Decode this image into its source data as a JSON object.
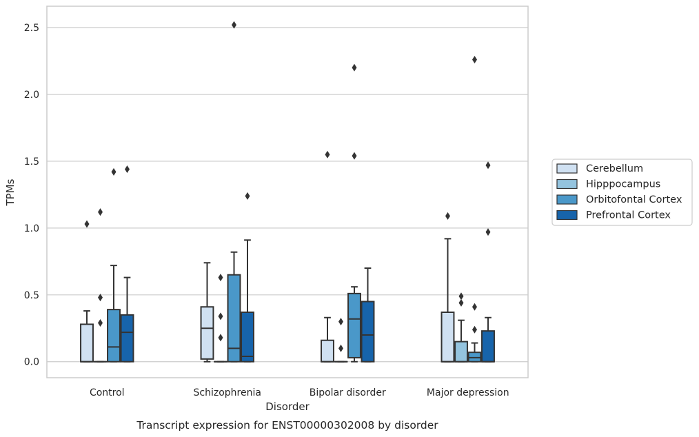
{
  "chart_data": {
    "type": "box",
    "caption": "Transcript expression for ENST00000302008 by disorder",
    "xlabel": "Disorder",
    "ylabel": "TPMs",
    "ylim": [
      -0.12,
      2.66
    ],
    "yticks": [
      0.0,
      0.5,
      1.0,
      1.5,
      2.0,
      2.5
    ],
    "ytick_labels": [
      "0.0",
      "0.5",
      "1.0",
      "1.5",
      "2.0",
      "2.5"
    ],
    "grid": "horizontal",
    "legend_position": "right",
    "categories": [
      "Control",
      "Schizophrenia",
      "Bipolar disorder",
      "Major depression"
    ],
    "series": [
      {
        "name": "Cerebellum",
        "color": "#d0e1f2",
        "boxes": [
          {
            "q1": 0.0,
            "median": 0.0,
            "q3": 0.28,
            "whisker_low": 0.0,
            "whisker_high": 0.38,
            "outliers": [
              1.03
            ]
          },
          {
            "q1": 0.02,
            "median": 0.25,
            "q3": 0.41,
            "whisker_low": 0.0,
            "whisker_high": 0.74,
            "outliers": []
          },
          {
            "q1": 0.0,
            "median": 0.0,
            "q3": 0.16,
            "whisker_low": 0.0,
            "whisker_high": 0.33,
            "outliers": [
              1.55
            ]
          },
          {
            "q1": 0.0,
            "median": 0.0,
            "q3": 0.37,
            "whisker_low": 0.0,
            "whisker_high": 0.92,
            "outliers": [
              1.09
            ]
          }
        ]
      },
      {
        "name": "Hipppocampus",
        "color": "#94c4df",
        "boxes": [
          {
            "q1": 0.0,
            "median": 0.0,
            "q3": 0.0,
            "whisker_low": 0.0,
            "whisker_high": 0.0,
            "outliers": [
              0.29,
              0.48,
              1.12
            ]
          },
          {
            "q1": 0.0,
            "median": 0.0,
            "q3": 0.0,
            "whisker_low": 0.0,
            "whisker_high": 0.0,
            "outliers": [
              0.18,
              0.34,
              0.63
            ]
          },
          {
            "q1": 0.0,
            "median": 0.0,
            "q3": 0.0,
            "whisker_low": 0.0,
            "whisker_high": 0.0,
            "outliers": [
              0.1,
              0.3
            ]
          },
          {
            "q1": 0.0,
            "median": 0.0,
            "q3": 0.15,
            "whisker_low": 0.0,
            "whisker_high": 0.31,
            "outliers": [
              0.44,
              0.49
            ]
          }
        ]
      },
      {
        "name": "Orbitofontal Cortex",
        "color": "#4a98c9",
        "boxes": [
          {
            "q1": 0.0,
            "median": 0.11,
            "q3": 0.39,
            "whisker_low": 0.0,
            "whisker_high": 0.72,
            "outliers": [
              1.42
            ]
          },
          {
            "q1": 0.0,
            "median": 0.1,
            "q3": 0.65,
            "whisker_low": 0.0,
            "whisker_high": 0.82,
            "outliers": [
              2.52
            ]
          },
          {
            "q1": 0.03,
            "median": 0.32,
            "q3": 0.51,
            "whisker_low": 0.0,
            "whisker_high": 0.56,
            "outliers": [
              1.54,
              2.2
            ]
          },
          {
            "q1": 0.0,
            "median": 0.03,
            "q3": 0.07,
            "whisker_low": 0.0,
            "whisker_high": 0.14,
            "outliers": [
              0.24,
              0.41,
              2.26
            ]
          }
        ]
      },
      {
        "name": "Prefrontal Cortex",
        "color": "#1764ab",
        "boxes": [
          {
            "q1": 0.0,
            "median": 0.22,
            "q3": 0.35,
            "whisker_low": 0.0,
            "whisker_high": 0.63,
            "outliers": [
              1.44
            ]
          },
          {
            "q1": 0.0,
            "median": 0.04,
            "q3": 0.37,
            "whisker_low": 0.0,
            "whisker_high": 0.91,
            "outliers": [
              1.24
            ]
          },
          {
            "q1": 0.0,
            "median": 0.2,
            "q3": 0.45,
            "whisker_low": 0.0,
            "whisker_high": 0.7,
            "outliers": []
          },
          {
            "q1": 0.0,
            "median": 0.0,
            "q3": 0.23,
            "whisker_low": 0.0,
            "whisker_high": 0.33,
            "outliers": [
              0.97,
              1.47
            ]
          }
        ]
      }
    ]
  }
}
